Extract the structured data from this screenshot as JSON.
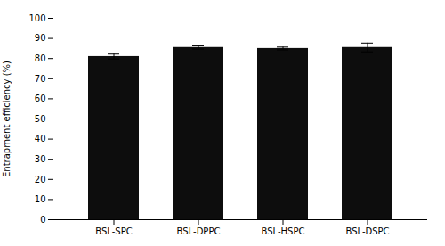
{
  "chart_data": {
    "type": "bar",
    "categories": [
      "BSL-SPC",
      "BSL-DPPC",
      "BSL-HSPC",
      "BSL-DSPC"
    ],
    "values": [
      81.0,
      85.5,
      85.0,
      85.5
    ],
    "errors": [
      1.2,
      0.8,
      0.7,
      2.2
    ],
    "color": "#0d0d0d",
    "ylabel": "Entrapment efficiency (%)",
    "ylim": [
      0,
      100
    ],
    "yticks": [
      0,
      10,
      20,
      30,
      40,
      50,
      60,
      70,
      80,
      90,
      100
    ],
    "grid": false
  }
}
